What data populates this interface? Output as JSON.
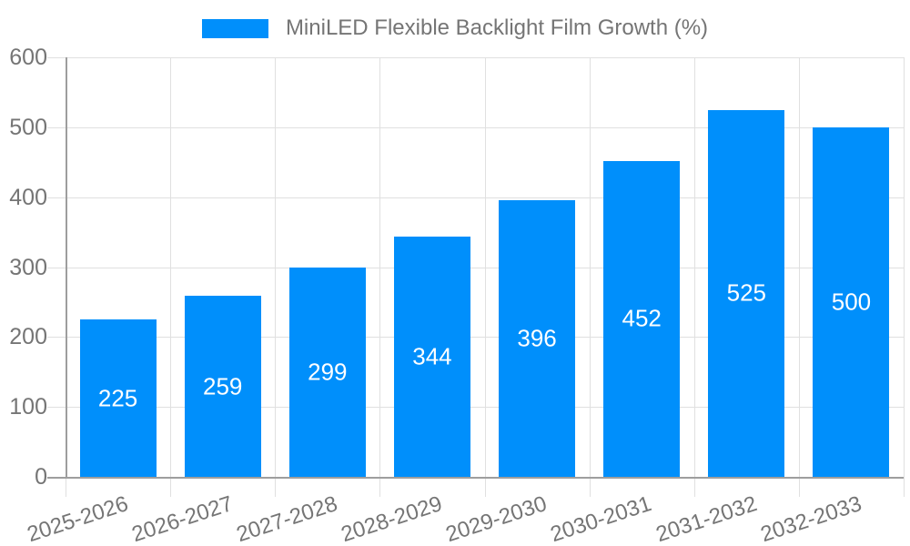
{
  "legend": {
    "label": "MiniLED Flexible Backlight Film Growth (%)"
  },
  "chart_data": {
    "type": "bar",
    "title": "MiniLED Flexible Backlight Film Growth (%)",
    "categories": [
      "2025-2026",
      "2026-2027",
      "2027-2028",
      "2028-2029",
      "2029-2030",
      "2030-2031",
      "2031-2032",
      "2032-2033"
    ],
    "values": [
      225,
      259,
      299,
      344,
      396,
      452,
      525,
      500
    ],
    "xlabel": "",
    "ylabel": "",
    "ylim": [
      0,
      600
    ],
    "yticks": [
      0,
      100,
      200,
      300,
      400,
      500,
      600
    ],
    "grid": true,
    "legend_position": "top",
    "colors": {
      "bar": "#008FFB",
      "value_label": "#ffffff",
      "axis_label": "#757575",
      "gridline": "#e0e0e0",
      "axis_line": "#9e9e9e"
    }
  }
}
